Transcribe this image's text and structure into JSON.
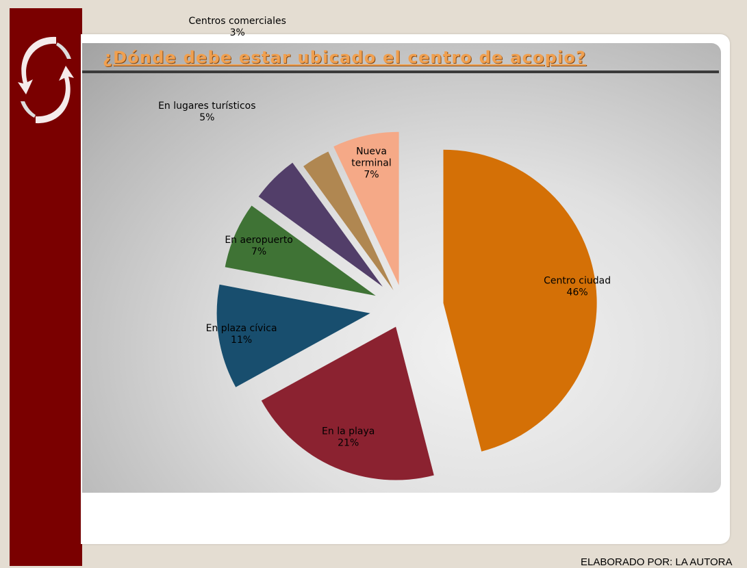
{
  "chart_data": {
    "type": "pie",
    "title": "¿Dónde debe estar ubicado el centro de acopio?",
    "slices": [
      {
        "label": "Centro ciudad",
        "value": 46,
        "value_label": "46%",
        "color": "#d47006"
      },
      {
        "label": "En la playa",
        "value": 21,
        "value_label": "21%",
        "color": "#8b2230"
      },
      {
        "label": "En plaza cívica",
        "value": 11,
        "value_label": "11%",
        "color": "#184e6e"
      },
      {
        "label": "En aeropuerto",
        "value": 7,
        "value_label": "7%",
        "color": "#3f7335"
      },
      {
        "label": "En lugares turísticos",
        "value": 5,
        "value_label": "5%",
        "color": "#523e69"
      },
      {
        "label": "Centros comerciales",
        "value": 3,
        "value_label": "3%",
        "color": "#b08751"
      },
      {
        "label": "Nueva terminal",
        "value": 7,
        "value_label": "7%",
        "color": "#f5a987"
      }
    ],
    "label_position": "inside",
    "exploded": true
  },
  "footer": "ELABORADO POR: LA AUTORA",
  "colors": {
    "sidebar": "#7a0000",
    "title": "#f0a050",
    "background": "#e4ddd2"
  }
}
